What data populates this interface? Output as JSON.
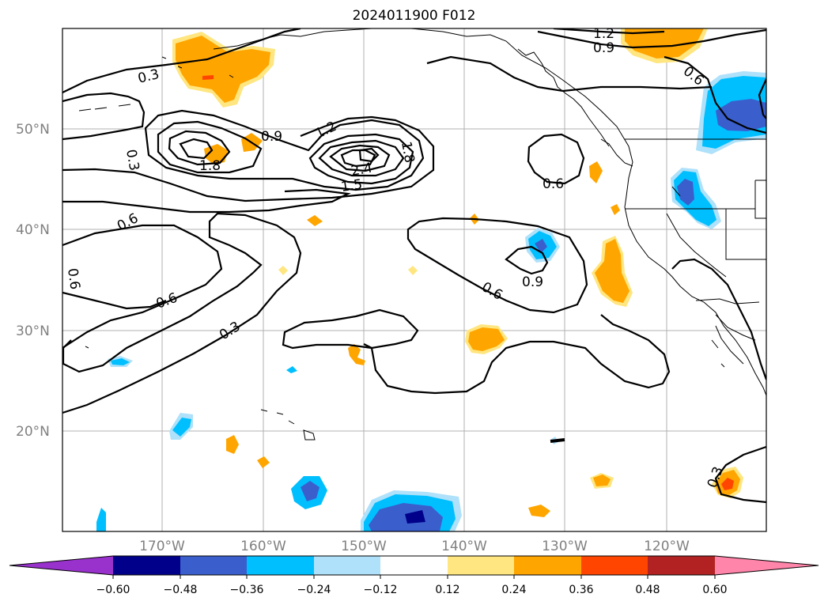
{
  "title": "2024011900 F012",
  "lat_labels": [
    "50°N",
    "40°N",
    "30°N",
    "20°N"
  ],
  "lon_labels": [
    "170°W",
    "160°W",
    "150°W",
    "140°W",
    "130°W",
    "120°W"
  ],
  "colorbar": {
    "ticks": [
      "−0.60",
      "−0.48",
      "−0.36",
      "−0.24",
      "−0.12",
      "0.12",
      "0.24",
      "0.36",
      "0.48",
      "0.60"
    ],
    "colors": [
      "#9932cc",
      "#00008b",
      "#3a5fcd",
      "#00bfff",
      "#afe1fa",
      "#ffffff",
      "#ffe680",
      "#ffa500",
      "#ff4500",
      "#b22222",
      "#ff85aa"
    ]
  },
  "contour_labels": [
    "0.3",
    "0.3",
    "1.8",
    "0.9",
    "1.2",
    "1.5",
    "2.4",
    "1.8",
    "1.2",
    "0.9",
    "0.6",
    "0.6",
    "0.6",
    "0.6",
    "0.3",
    "0.9",
    "0.6",
    "0.6",
    "0.3"
  ]
}
